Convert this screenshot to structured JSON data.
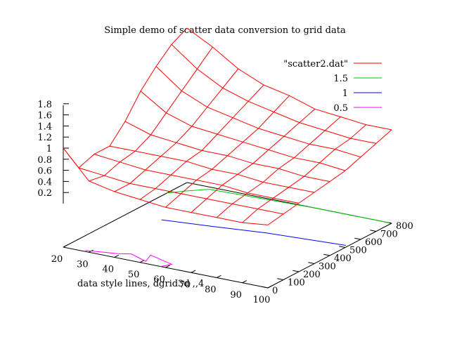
{
  "chart_data": {
    "type": "surface-3d",
    "title": "Simple demo of scatter data conversion to grid data",
    "xlabel": "data style lines, dgrid3d ,,4",
    "ylabel": "",
    "zlabel": "",
    "xlim": [
      20,
      100
    ],
    "ylim": [
      0,
      800
    ],
    "zlim": [
      0,
      1.8
    ],
    "x_ticks": [
      "20",
      "30",
      "40",
      "50",
      "60",
      "70",
      "80",
      "90",
      "100"
    ],
    "y_ticks": [
      "0",
      "100",
      "200",
      "300",
      "400",
      "500",
      "600",
      "700",
      "800"
    ],
    "z_ticks": [
      "0.2",
      "0.4",
      "0.6",
      "0.8",
      "1",
      "1.2",
      "1.4",
      "1.6",
      "1.8"
    ],
    "legend": "top-right",
    "series": [
      {
        "name": "\"scatter2.dat\"",
        "color": "#ff0000",
        "style": "surface-mesh",
        "grid_x": [
          20,
          30,
          40,
          50,
          60,
          70,
          80,
          90,
          100
        ],
        "grid_y": [
          0,
          100,
          200,
          300,
          400,
          500,
          600,
          700,
          800
        ],
        "z": [
          [
            1.0,
            0.5,
            0.4,
            0.35,
            0.3,
            0.3,
            0.3,
            0.3,
            0.35
          ],
          [
            0.5,
            0.45,
            0.4,
            0.4,
            0.4,
            0.4,
            0.4,
            0.4,
            0.4
          ],
          [
            0.6,
            0.55,
            0.5,
            0.5,
            0.5,
            0.5,
            0.45,
            0.45,
            0.45
          ],
          [
            0.6,
            0.6,
            0.6,
            0.6,
            0.55,
            0.55,
            0.5,
            0.5,
            0.5
          ],
          [
            0.9,
            0.75,
            0.7,
            0.65,
            0.65,
            0.6,
            0.6,
            0.55,
            0.55
          ],
          [
            1.3,
            1.0,
            0.85,
            0.8,
            0.75,
            0.7,
            0.65,
            0.65,
            0.6
          ],
          [
            1.6,
            1.25,
            1.05,
            0.95,
            0.85,
            0.8,
            0.75,
            0.75,
            0.7
          ],
          [
            1.85,
            1.5,
            1.25,
            1.1,
            1.0,
            0.9,
            0.85,
            0.8,
            0.8
          ],
          [
            2.0,
            1.75,
            1.45,
            1.25,
            1.15,
            1.0,
            0.95,
            0.9,
            0.9
          ]
        ]
      },
      {
        "name": "1.5",
        "color": "#00cc00",
        "style": "contour",
        "points": [
          [
            20,
            670
          ],
          [
            24,
            720
          ],
          [
            30,
            780
          ],
          [
            70,
            800
          ],
          [
            99,
            800
          ]
        ]
      },
      {
        "name": "1",
        "color": "#0000ff",
        "style": "contour",
        "points": [
          [
            33,
            420
          ],
          [
            50,
            450
          ],
          [
            70,
            490
          ],
          [
            99,
            520
          ]
        ]
      },
      {
        "name": "0.5",
        "color": "#ff00ff",
        "style": "contour",
        "points": [
          [
            28,
            10
          ],
          [
            39,
            40
          ],
          [
            43,
            60
          ],
          [
            51,
            20
          ],
          [
            49,
            85
          ],
          [
            60,
            40
          ],
          [
            58,
            0
          ]
        ]
      }
    ]
  }
}
